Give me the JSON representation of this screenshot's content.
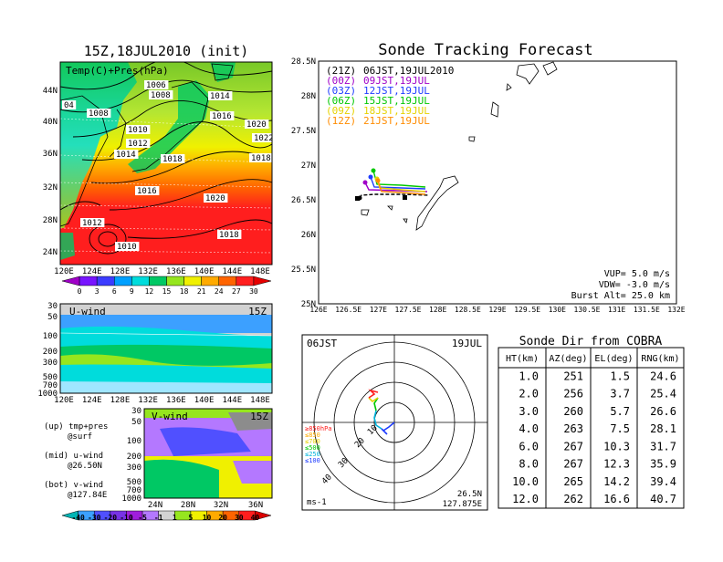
{
  "left_panel": {
    "title": "15Z,18JUL2010 (init)",
    "map_label": "Temp(C)+Pres(hPa)",
    "lat_ticks": [
      "44N",
      "40N",
      "36N",
      "32N",
      "28N",
      "24N"
    ],
    "lon_ticks": [
      "120E",
      "124E",
      "128E",
      "132E",
      "136E",
      "140E",
      "144E",
      "148E"
    ],
    "isobar_labels": [
      "1012",
      "04",
      "1008",
      "1006",
      "1008",
      "1010",
      "1012",
      "1014",
      "1014",
      "1016",
      "1018",
      "1020",
      "1022",
      "1018",
      "1016",
      "1020",
      "1012",
      "1010",
      "1018"
    ],
    "colorbar_values": [
      "0",
      "3",
      "6",
      "9",
      "12",
      "15",
      "18",
      "21",
      "24",
      "27",
      "30"
    ],
    "colorbar_colors": [
      "#a000c8",
      "#7814ff",
      "#3c3cff",
      "#00a0ff",
      "#00dcdc",
      "#00c864",
      "#96e61e",
      "#f0f000",
      "#ffaa00",
      "#ff6400",
      "#ff1e1e",
      "#e60000"
    ]
  },
  "u_panel": {
    "label": "U-wind",
    "time": "15Z",
    "p_ticks": [
      "30",
      "50",
      "100",
      "200",
      "300",
      "500",
      "700",
      "1000"
    ],
    "lon_ticks": [
      "120E",
      "124E",
      "128E",
      "132E",
      "136E",
      "140E",
      "144E",
      "148E"
    ]
  },
  "v_panel": {
    "label": "V-wind",
    "time": "15Z",
    "p_ticks": [
      "30",
      "50",
      "100",
      "200",
      "300",
      "500",
      "700",
      "1000"
    ],
    "lat_ticks": [
      "24N",
      "28N",
      "32N",
      "36N"
    ]
  },
  "legend_text": {
    "up1": "(up) tmp+pres",
    "up2": "@surf",
    "mid1": "(mid) u-wind",
    "mid2": "@26.50N",
    "bot1": "(bot) v-wind",
    "bot2": "@127.84E"
  },
  "wind_colorbar": {
    "values": [
      "-40",
      "-30",
      "-20",
      "-10",
      "-5",
      "-1",
      "1",
      "5",
      "10",
      "20",
      "30",
      "40"
    ],
    "colors": [
      "#00b4b4",
      "#3ca0ff",
      "#5050ff",
      "#7832e6",
      "#a01edc",
      "#b478ff",
      "#d2d2d2",
      "#96e61e",
      "#f0f000",
      "#ffaa00",
      "#ff6400",
      "#ff1e1e",
      "#dc0000"
    ]
  },
  "tracking": {
    "title": "Sonde Tracking Forecast",
    "lat_ticks": [
      "28.5N",
      "28N",
      "27.5N",
      "27N",
      "26.5N",
      "26N",
      "25.5N",
      "25N"
    ],
    "lon_ticks": [
      "126E",
      "126.5E",
      "127E",
      "127.5E",
      "128E",
      "128.5E",
      "129E",
      "129.5E",
      "130E",
      "130.5E",
      "131E",
      "131.5E",
      "132E"
    ],
    "legend": [
      {
        "tag": "(21Z)",
        "text": "06JST,19JUL2010",
        "color": "#000000"
      },
      {
        "tag": "(00Z)",
        "text": "09JST,19JUL",
        "color": "#a000c8"
      },
      {
        "tag": "(03Z)",
        "text": "12JST,19JUL",
        "color": "#1e3cff"
      },
      {
        "tag": "(06Z)",
        "text": "15JST,19JUL",
        "color": "#00c800"
      },
      {
        "tag": "(09Z)",
        "text": "18JST,19JUL",
        "color": "#e6d200"
      },
      {
        "tag": "(12Z)",
        "text": "21JST,19JUL",
        "color": "#ff8c00"
      }
    ],
    "vup": "VUP=  5.0  m/s",
    "vdw": "VDW= -3.0  m/s",
    "burst": "Burst Alt= 25.0  km"
  },
  "polar": {
    "time_left": "06JST",
    "time_right": "19JUL",
    "ring_labels": [
      "10",
      "20",
      "30",
      "40"
    ],
    "legend": [
      {
        "text": "≥850hPa",
        "color": "#ff1e1e"
      },
      {
        "text": "≤850",
        "color": "#ffaa00"
      },
      {
        "text": "≤700",
        "color": "#e6d200"
      },
      {
        "text": "≤500",
        "color": "#00c800"
      },
      {
        "text": "≤250",
        "color": "#00b4dc"
      },
      {
        "text": "≤100",
        "color": "#1e3cff"
      }
    ],
    "unit": "ms-1",
    "lat": "26.5N",
    "lon": "127.875E"
  },
  "cobra": {
    "title": "Sonde Dir from COBRA",
    "headers": [
      "HT(km)",
      "AZ(deg)",
      "EL(deg)",
      "RNG(km)"
    ],
    "rows": [
      [
        "1.0",
        "251",
        "1.5",
        "24.6"
      ],
      [
        "2.0",
        "256",
        "3.7",
        "25.4"
      ],
      [
        "3.0",
        "260",
        "5.7",
        "26.6"
      ],
      [
        "4.0",
        "263",
        "7.5",
        "28.1"
      ],
      [
        "6.0",
        "267",
        "10.3",
        "31.7"
      ],
      [
        "8.0",
        "267",
        "12.3",
        "35.9"
      ],
      [
        "10.0",
        "265",
        "14.2",
        "39.4"
      ],
      [
        "12.0",
        "262",
        "16.6",
        "40.7"
      ]
    ]
  }
}
